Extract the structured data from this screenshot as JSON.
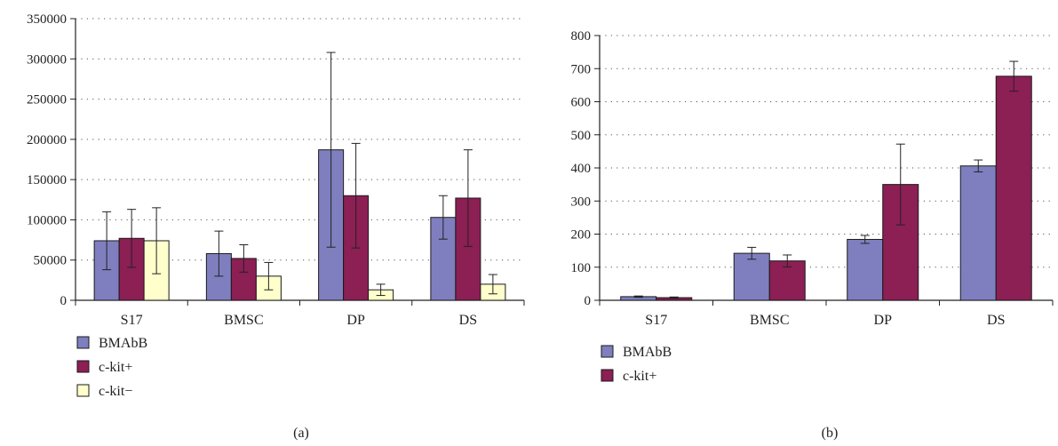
{
  "colors": {
    "series_fill": [
      "#7f7fbf",
      "#8c1f54",
      "#ffffcc"
    ],
    "bar_stroke": "#1a1a1a",
    "axis": "#222222",
    "grid": "#555555"
  },
  "chart_data": [
    {
      "type": "bar",
      "panel_label": "(a)",
      "categories": [
        "S17",
        "BMSC",
        "DP",
        "DS"
      ],
      "series": [
        {
          "name": "BMAbB",
          "values": [
            74000,
            58000,
            187000,
            103000
          ],
          "errors": [
            36000,
            28000,
            121000,
            27000
          ]
        },
        {
          "name": "c-kit+",
          "values": [
            77000,
            52000,
            130000,
            127000
          ],
          "errors": [
            36000,
            17000,
            65000,
            60000
          ]
        },
        {
          "name": "c-kit−",
          "values": [
            74000,
            30000,
            13000,
            20000
          ],
          "errors": [
            41000,
            17000,
            7000,
            12000
          ]
        }
      ],
      "ylim": [
        0,
        350000
      ],
      "yticks": [
        0,
        50000,
        100000,
        150000,
        200000,
        250000,
        300000,
        350000
      ],
      "ytick_labels": [
        "0",
        "50000",
        "100000",
        "150000",
        "200000",
        "250000",
        "300000",
        "350000"
      ],
      "grid": true,
      "grid_style": "dotted",
      "legend_position": "bottom-left",
      "xlabel": "",
      "ylabel": ""
    },
    {
      "type": "bar",
      "panel_label": "(b)",
      "categories": [
        "S17",
        "BMSC",
        "DP",
        "DS"
      ],
      "series": [
        {
          "name": "BMAbB",
          "values": [
            11,
            142,
            184,
            406
          ],
          "errors": [
            2,
            18,
            12,
            18
          ]
        },
        {
          "name": "c-kit+",
          "values": [
            8,
            119,
            350,
            677
          ],
          "errors": [
            2,
            18,
            122,
            45
          ]
        }
      ],
      "ylim": [
        0,
        800
      ],
      "yticks": [
        0,
        100,
        200,
        300,
        400,
        500,
        600,
        700,
        800
      ],
      "ytick_labels": [
        "0",
        "100",
        "200",
        "300",
        "400",
        "500",
        "600",
        "700",
        "800"
      ],
      "grid": true,
      "grid_style": "dotted",
      "legend_position": "bottom-left",
      "xlabel": "",
      "ylabel": ""
    }
  ]
}
